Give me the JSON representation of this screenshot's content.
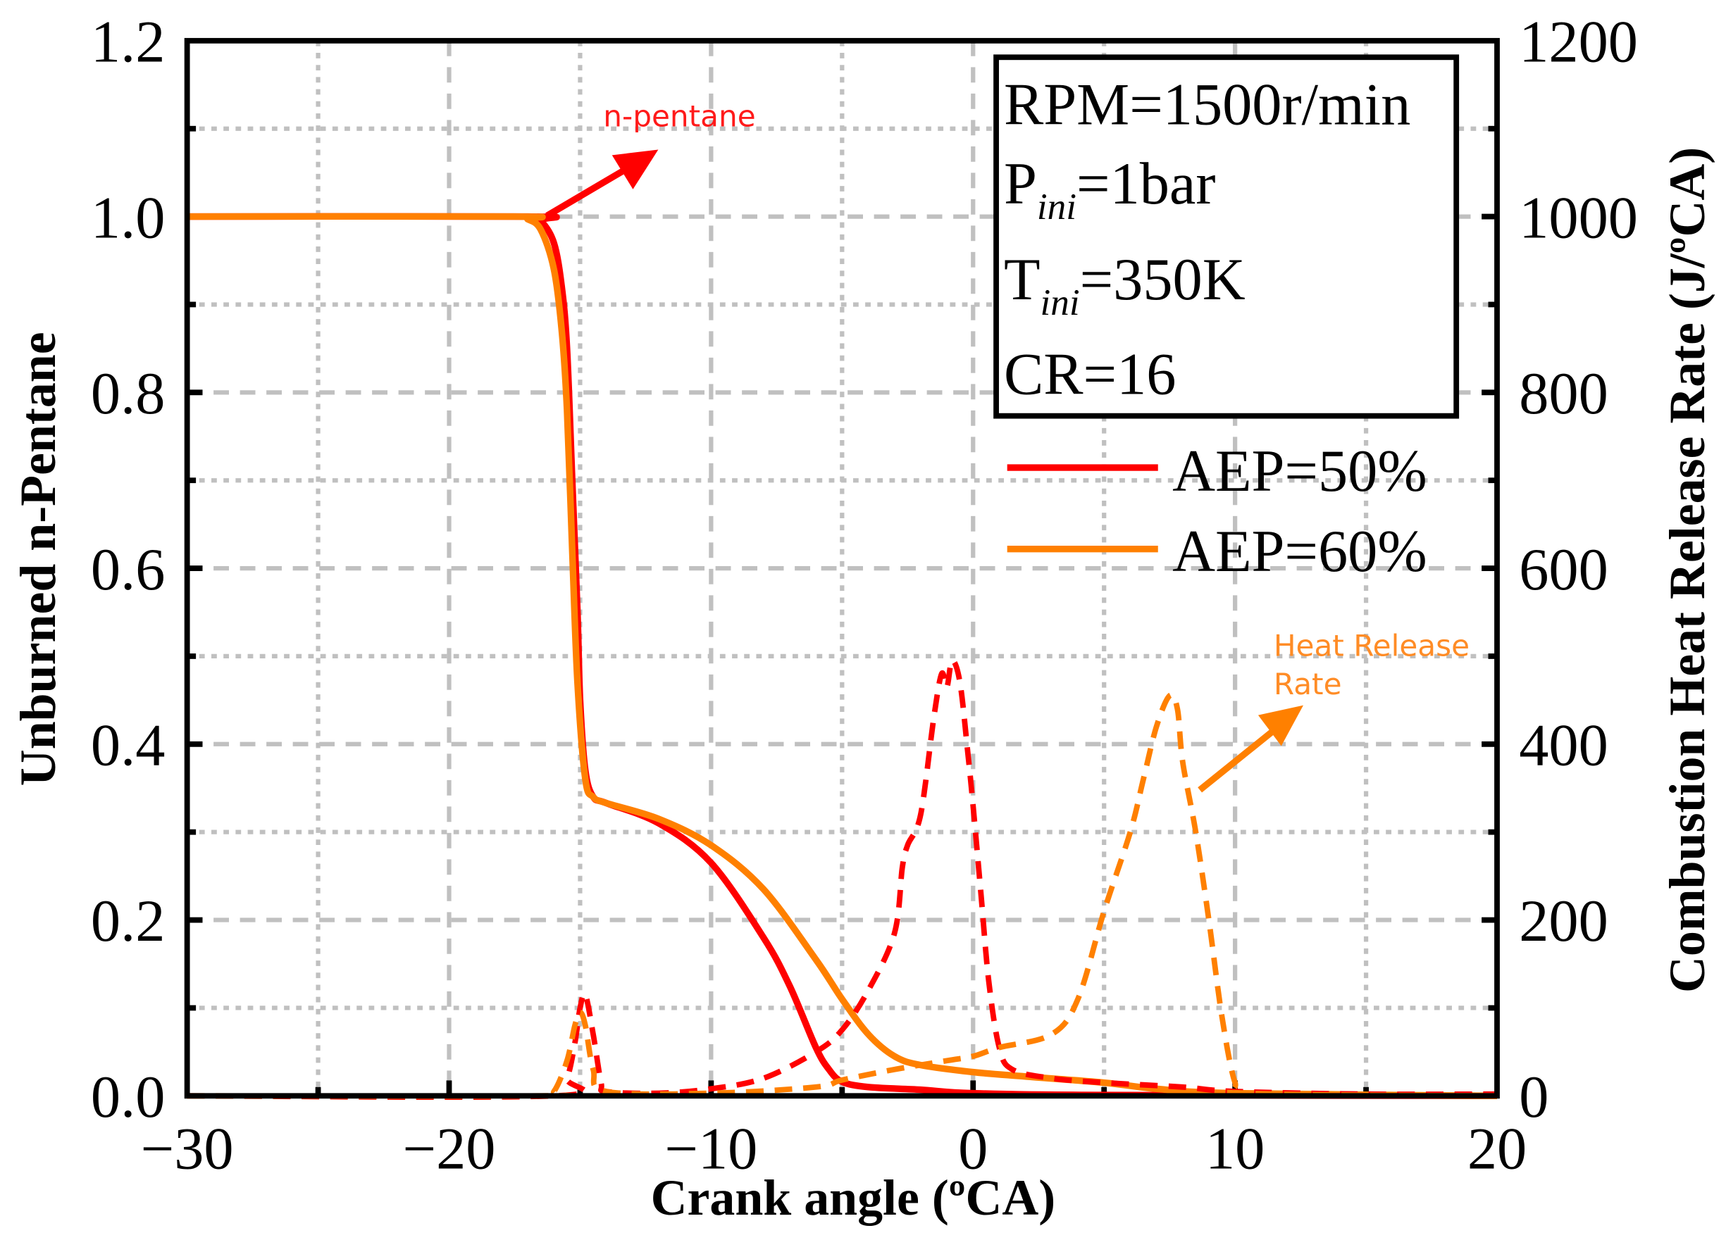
{
  "chart_data": {
    "type": "line",
    "xlabel": "Crank angle  (ºCA)",
    "ylabel": "Unburned n-Pentane",
    "y2label": "Combustion Heat Release Rate (J/ºCA)",
    "xlim": [
      -30,
      20
    ],
    "ylim": [
      0,
      1.2
    ],
    "y2lim": [
      0,
      1200
    ],
    "x_ticks": [
      -30,
      -20,
      -10,
      0,
      10,
      20
    ],
    "x_tick_labels": [
      "−30",
      "−20",
      "−10",
      "0",
      "10",
      "20"
    ],
    "y_ticks": [
      0,
      0.2,
      0.4,
      0.6,
      0.8,
      1.0,
      1.2
    ],
    "y_tick_labels": [
      "0.0",
      "0.2",
      "0.4",
      "0.6",
      "0.8",
      "1.0",
      "1.2"
    ],
    "y2_ticks": [
      0,
      200,
      400,
      600,
      800,
      1000,
      1200
    ],
    "y2_tick_labels": [
      "0",
      "200",
      "400",
      "600",
      "800",
      "1000",
      "1200"
    ],
    "grid": true,
    "legend_placement": "top-right",
    "conditions": {
      "rpm": "RPM=1500r/min",
      "p_main": "P",
      "p_sub": "ini",
      "p_rest": "=1bar",
      "t_main": "T",
      "t_sub": "ini",
      "t_rest": "=350K",
      "cr": "CR=16"
    },
    "annotations": {
      "pentane": "n-pentane",
      "hrr_line1": "Heat Release",
      "hrr_line2": "Rate"
    },
    "colors": {
      "aep50": "#ff0000",
      "aep60": "#ff8000",
      "grid": "#c0c0c0"
    },
    "series": [
      {
        "name": "AEP=50%",
        "axis": "left",
        "style": "solid",
        "color": "#ff0000",
        "x": [
          -30,
          -17,
          -16.5,
          -16,
          -15.7,
          -15.5,
          -15.3,
          -15.1,
          -15,
          -14.8,
          -14.5,
          -14,
          -12,
          -10,
          -8,
          -7,
          -6,
          -5.5,
          -5,
          -4,
          -2,
          0,
          5,
          20
        ],
        "y": [
          1.0,
          1.0,
          0.995,
          0.97,
          0.92,
          0.85,
          0.7,
          0.55,
          0.45,
          0.37,
          0.34,
          0.333,
          0.31,
          0.265,
          0.18,
          0.125,
          0.055,
          0.03,
          0.016,
          0.01,
          0.007,
          0.003,
          0.001,
          0.0
        ]
      },
      {
        "name": "AEP=60%",
        "axis": "left",
        "style": "solid",
        "color": "#ff8000",
        "x": [
          -30,
          -17.5,
          -17,
          -16.5,
          -16,
          -15.7,
          -15.5,
          -15.3,
          -15.1,
          -14.8,
          -14.5,
          -14,
          -12,
          -10,
          -8,
          -6,
          -5,
          -4,
          -3,
          -2,
          0,
          2,
          5,
          7,
          10,
          20
        ],
        "y": [
          1.0,
          1.0,
          0.997,
          0.985,
          0.94,
          0.87,
          0.78,
          0.62,
          0.47,
          0.36,
          0.34,
          0.333,
          0.315,
          0.285,
          0.235,
          0.155,
          0.11,
          0.07,
          0.045,
          0.035,
          0.027,
          0.022,
          0.015,
          0.008,
          0.003,
          0.0
        ]
      },
      {
        "name": "AEP=50% HRR",
        "axis": "right",
        "style": "dashed",
        "color": "#ff0000",
        "x": [
          -30,
          -16,
          -15.5,
          -15.2,
          -15,
          -14.8,
          -14.5,
          -14.2,
          -14,
          -12,
          -10,
          -8,
          -6,
          -5,
          -4,
          -3,
          -2.7,
          -2.5,
          -2,
          -1.5,
          -1.2,
          -1,
          -0.8,
          -0.5,
          -0.2,
          0,
          0.3,
          0.6,
          1,
          1.5,
          3,
          5,
          8,
          10,
          15,
          20
        ],
        "y": [
          0,
          0,
          20,
          60,
          100,
          115,
          70,
          15,
          5,
          3,
          8,
          20,
          50,
          75,
          120,
          185,
          260,
          285,
          320,
          430,
          480,
          465,
          495,
          470,
          390,
          330,
          230,
          130,
          55,
          30,
          20,
          15,
          10,
          5,
          2,
          2
        ]
      },
      {
        "name": "AEP=60% HRR",
        "axis": "right",
        "style": "dashed",
        "color": "#ff8000",
        "x": [
          -30,
          -16.5,
          -16,
          -15.5,
          -15.2,
          -15,
          -14.8,
          -14.5,
          -14,
          -10,
          -6,
          -5,
          -3,
          -1,
          0,
          1,
          3,
          4,
          5,
          6,
          6.5,
          7,
          7.5,
          7.8,
          8,
          8.5,
          9,
          9.5,
          10,
          10.5,
          20
        ],
        "y": [
          0,
          0,
          5,
          40,
          80,
          95,
          80,
          30,
          5,
          3,
          10,
          18,
          30,
          40,
          45,
          55,
          70,
          110,
          210,
          300,
          360,
          420,
          455,
          440,
          380,
          300,
          200,
          90,
          15,
          3,
          0
        ]
      }
    ]
  }
}
